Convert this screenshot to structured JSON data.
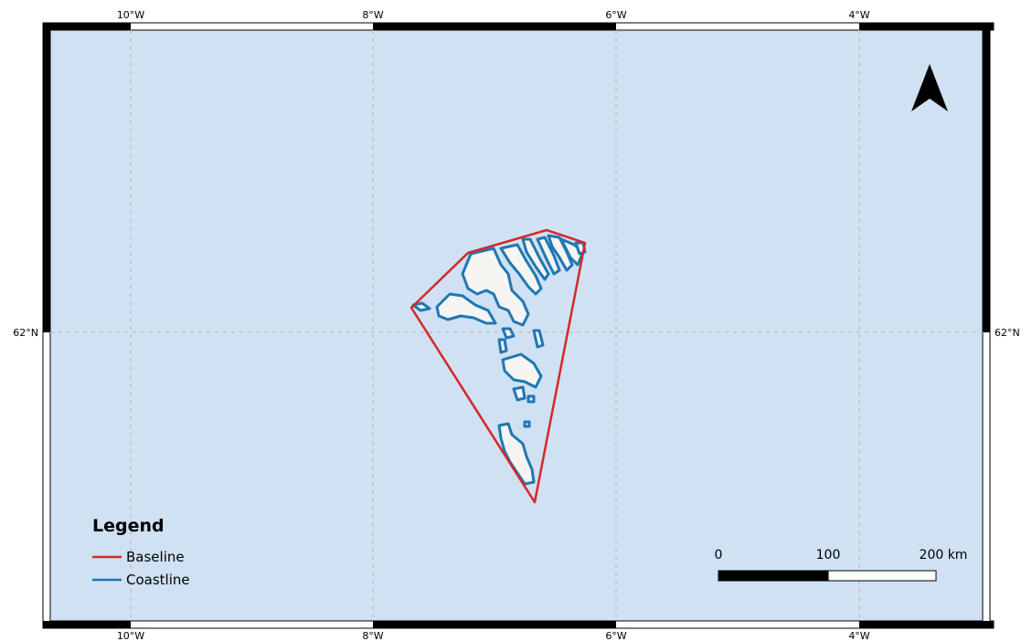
{
  "map": {
    "graticule": {
      "longitudes": [
        {
          "value": -10,
          "label": "10°W"
        },
        {
          "value": -8,
          "label": "8°W"
        },
        {
          "value": -6,
          "label": "6°W"
        },
        {
          "value": -4,
          "label": "4°W"
        }
      ],
      "latitudes": [
        {
          "value": 62,
          "label": "62°N"
        }
      ]
    },
    "colors": {
      "water": "#cfe1f2",
      "land": "#f7f5f2",
      "baseline": "#d62728",
      "coastline": "#1f77b4",
      "grid": "#c8c0b8",
      "frame": "#000000"
    },
    "north_arrow": {
      "icon": "north-arrow-icon"
    },
    "scale_bar": {
      "labels": [
        "0",
        "100",
        "200 km"
      ],
      "fill_fraction": 0.5
    },
    "legend": {
      "title": "Legend",
      "items": [
        {
          "label": "Baseline",
          "color": "#d62728"
        },
        {
          "label": "Coastline",
          "color": "#1f77b4"
        }
      ]
    }
  }
}
